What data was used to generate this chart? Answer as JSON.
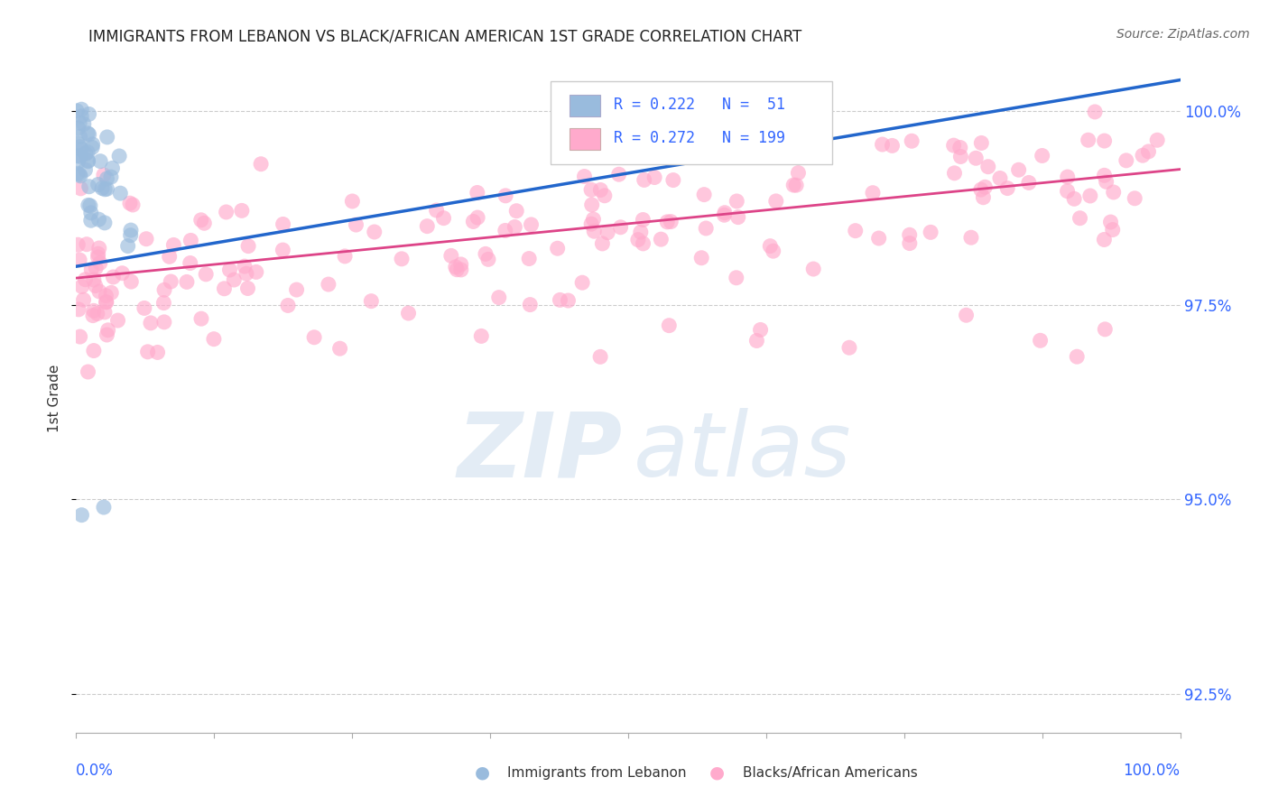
{
  "title": "IMMIGRANTS FROM LEBANON VS BLACK/AFRICAN AMERICAN 1ST GRADE CORRELATION CHART",
  "source": "Source: ZipAtlas.com",
  "ylabel": "1st Grade",
  "xmin": 0.0,
  "xmax": 100.0,
  "ymin": 92.0,
  "ymax": 100.6,
  "yticks": [
    92.5,
    95.0,
    97.5,
    100.0
  ],
  "ytick_labels": [
    "92.5%",
    "95.0%",
    "97.5%",
    "100.0%"
  ],
  "blue_R": 0.222,
  "blue_N": 51,
  "pink_R": 0.272,
  "pink_N": 199,
  "blue_color": "#99BBDD",
  "pink_color": "#FFAACC",
  "blue_line_color": "#2266CC",
  "pink_line_color": "#DD4488",
  "legend_blue_label": "Immigrants from Lebanon",
  "legend_pink_label": "Blacks/African Americans",
  "background_color": "#ffffff",
  "grid_color": "#cccccc",
  "title_fontsize": 12,
  "right_axis_color": "#3366FF",
  "pink_trend_x": [
    0.0,
    100.0
  ],
  "pink_trend_y": [
    97.85,
    99.25
  ],
  "blue_trend_x": [
    0.0,
    100.0
  ],
  "blue_trend_y": [
    98.0,
    100.4
  ]
}
